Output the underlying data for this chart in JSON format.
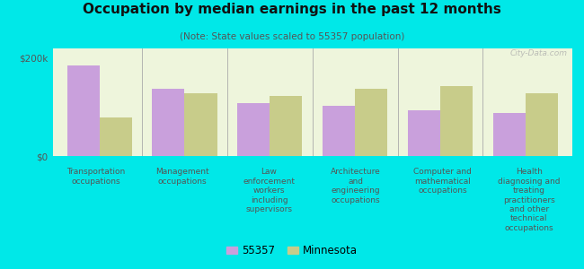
{
  "title": "Occupation by median earnings in the past 12 months",
  "subtitle": "(Note: State values scaled to 55357 population)",
  "categories": [
    "Transportation\noccupations",
    "Management\noccupations",
    "Law\nenforcement\nworkers\nincluding\nsupervisors",
    "Architecture\nand\nengineering\noccupations",
    "Computer and\nmathematical\noccupations",
    "Health\ndiagnosing and\ntreating\npractitioners\nand other\ntechnical\noccupations"
  ],
  "values_55357": [
    185000,
    138000,
    108000,
    103000,
    93000,
    88000
  ],
  "values_mn": [
    78000,
    128000,
    122000,
    138000,
    143000,
    128000
  ],
  "color_55357": "#c9a0dc",
  "color_mn": "#c8cc8a",
  "ylim": [
    0,
    220000
  ],
  "yticks": [
    0,
    200000
  ],
  "ytick_labels": [
    "$0",
    "$200k"
  ],
  "background_color": "#eef5dc",
  "outer_background": "#00e8e8",
  "bar_width": 0.38,
  "legend_55357": "55357",
  "legend_mn": "Minnesota",
  "watermark": "City-Data.com"
}
